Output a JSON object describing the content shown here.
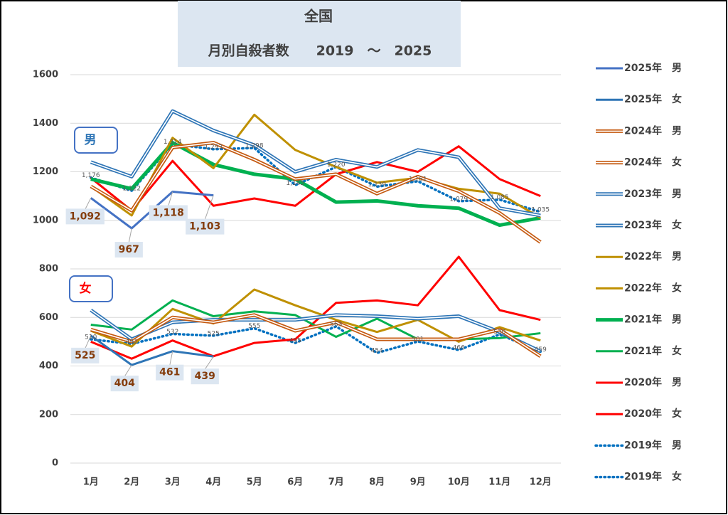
{
  "chart_data": {
    "type": "line",
    "title": "全国",
    "subtitle": "月別自殺者数　　2019　～　2025",
    "annotations": [
      "男",
      "女"
    ],
    "categories": [
      "1月",
      "2月",
      "3月",
      "4月",
      "5月",
      "6月",
      "7月",
      "8月",
      "9月",
      "10月",
      "11月",
      "12月"
    ],
    "ylim": [
      0,
      1600
    ],
    "yticks": [
      0,
      200,
      400,
      600,
      800,
      1000,
      1200,
      1400,
      1600
    ],
    "legend": "right",
    "series": [
      {
        "name": "2025年　男",
        "color": "#4472c4",
        "style": "solid",
        "values": [
          1092,
          967,
          1118,
          1103,
          null,
          null,
          null,
          null,
          null,
          null,
          null,
          null
        ],
        "value_labels": [
          "1,092",
          "967",
          "1,118",
          "1,103",
          null,
          null,
          null,
          null,
          null,
          null,
          null,
          null
        ]
      },
      {
        "name": "2025年　女",
        "color": "#2e75b6",
        "style": "solid",
        "values": [
          525,
          404,
          461,
          439,
          null,
          null,
          null,
          null,
          null,
          null,
          null,
          null
        ]
      },
      {
        "name": "2024年　男",
        "color": "#c55a11",
        "style": "double",
        "values": [
          1140,
          1040,
          1300,
          1320,
          1250,
          1170,
          1190,
          1110,
          1180,
          1120,
          1030,
          910
        ]
      },
      {
        "name": "2024年　女",
        "color": "#c55a11",
        "style": "double",
        "values": [
          550,
          500,
          600,
          580,
          610,
          545,
          580,
          510,
          510,
          510,
          550,
          440
        ]
      },
      {
        "name": "2023年　男",
        "color": "#2e75b6",
        "style": "double",
        "values": [
          1240,
          1180,
          1450,
          1370,
          1310,
          1200,
          1250,
          1220,
          1290,
          1260,
          1050,
          1020
        ]
      },
      {
        "name": "2023年　女",
        "color": "#2e75b6",
        "style": "double",
        "values": [
          630,
          510,
          580,
          590,
          590,
          590,
          610,
          605,
          595,
          605,
          540,
          460
        ]
      },
      {
        "name": "2022年　男",
        "color": "#bf9000",
        "style": "solid",
        "values": [
          1140,
          1020,
          1340,
          1215,
          1435,
          1290,
          1220,
          1155,
          1175,
          1130,
          1110,
          1010
        ]
      },
      {
        "name": "2022年　女",
        "color": "#bf9000",
        "style": "solid",
        "values": [
          545,
          480,
          635,
          575,
          715,
          650,
          590,
          540,
          590,
          500,
          560,
          505
        ]
      },
      {
        "name": "2021年　男",
        "color": "#00b050",
        "style": "thick",
        "values": [
          1170,
          1130,
          1320,
          1230,
          1190,
          1170,
          1075,
          1080,
          1060,
          1050,
          980,
          1010
        ]
      },
      {
        "name": "2021年　女",
        "color": "#00b050",
        "style": "solid",
        "values": [
          570,
          550,
          670,
          605,
          625,
          610,
          520,
          595,
          510,
          510,
          515,
          535
        ]
      },
      {
        "name": "2020年　男",
        "color": "#ff0000",
        "style": "solid",
        "values": [
          1175,
          1040,
          1245,
          1060,
          1090,
          1060,
          1190,
          1240,
          1200,
          1305,
          1170,
          1100
        ]
      },
      {
        "name": "2020年　女",
        "color": "#ff0000",
        "style": "solid",
        "values": [
          500,
          430,
          505,
          440,
          495,
          510,
          660,
          670,
          650,
          850,
          630,
          590
        ]
      },
      {
        "name": "2019年　男",
        "color": "#0070c0",
        "style": "dotted",
        "values": [
          1176,
          1122,
          1314,
          1293,
          1298,
          1145,
          1220,
          1139,
          1161,
          1079,
          1085,
          1035
        ],
        "value_labels": [
          "1,176",
          "1,122",
          "1,314",
          "1,293",
          "1,298",
          "1,145",
          "1,220",
          "1,139",
          "1,161",
          "1,079",
          "1,085",
          "1,035"
        ]
      },
      {
        "name": "2019年　女",
        "color": "#0070c0",
        "style": "dotted",
        "values": [
          510,
          491,
          532,
          525,
          555,
          495,
          563,
          454,
          501,
          466,
          530,
          459
        ],
        "value_labels": [
          "510",
          "491",
          "532",
          "525",
          "555",
          "495",
          "563",
          "454",
          "501",
          "466",
          "530",
          "459"
        ]
      }
    ]
  }
}
